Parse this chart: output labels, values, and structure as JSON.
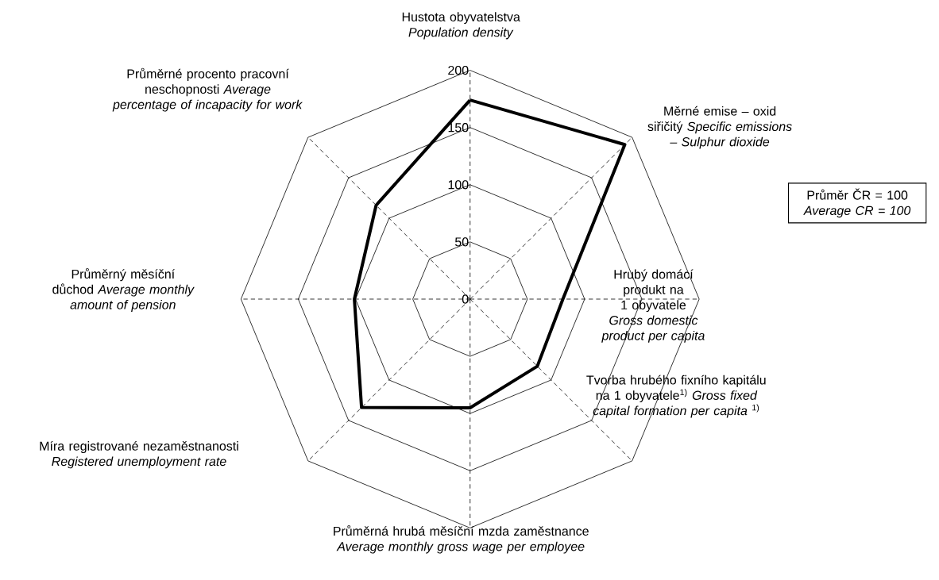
{
  "chart_data": {
    "type": "radar",
    "categories": [
      "Hustota obyvatelstva *Population density*",
      "Měrné emise – oxid siřičitý *Specific emissions  – Sulphur dioxide*",
      "Hrubý domácí produkt na 1 obyvatele *Gross domestic product per capita*",
      "Tvorba hrubého fixního kapitálu na 1 obyvatele$^{1)}$ *Gross fixed capital formation per capita* $^{1)}$",
      "Průměrná hrubá měsíční mzda zaměstnance *Average monthly gross wage per employee*",
      "Míra registrované nezaměstnanosti *Registered unemployment rate*",
      "Průměrný měsíční důchod *Average monthly amount of pension*",
      "Průměrné procento pracovní neschopnosti *Average percentage of incapacity for work*"
    ],
    "series": [
      {
        "color": "#000000",
        "values": [
          174,
          191,
          81,
          83,
          95,
          134,
          101,
          116
        ]
      }
    ],
    "ylim": [
      0,
      200
    ],
    "yticks": [
      0,
      50,
      100,
      150,
      200
    ],
    "grid": true,
    "line_style": "solid",
    "annotations": [
      "Průměr  ČR = 100 *Average CR = 100*"
    ]
  }
}
